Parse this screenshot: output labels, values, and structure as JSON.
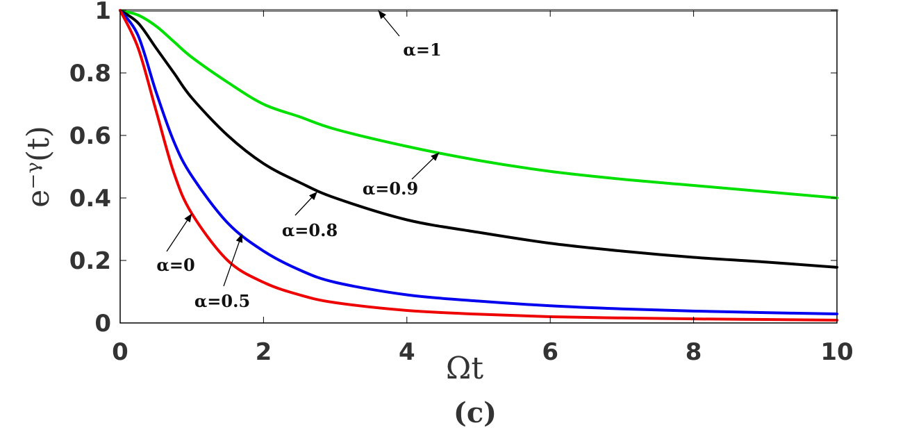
{
  "chart_data": {
    "type": "line",
    "xlabel": "Ωt",
    "ylabel": "e⁻ᵞ(t)",
    "panel_label": "(c)",
    "xlim": [
      0,
      10
    ],
    "ylim": [
      0,
      1
    ],
    "xticks": [
      "0",
      "2",
      "4",
      "6",
      "8",
      "10"
    ],
    "yticks": [
      "0",
      "0.2",
      "0.4",
      "0.6",
      "0.8",
      "1"
    ],
    "grid": false,
    "x": [
      0,
      0.25,
      0.5,
      0.75,
      1,
      1.5,
      2,
      2.5,
      3,
      4,
      5,
      6,
      7,
      8,
      9,
      10
    ],
    "series": [
      {
        "name": "α=1",
        "color": "#808080",
        "values": [
          1,
          1,
          1,
          1,
          1,
          1,
          1,
          1,
          1,
          1,
          1,
          1,
          1,
          1,
          1,
          1
        ]
      },
      {
        "name": "α=0.9",
        "color": "#00e000",
        "values": [
          1,
          0.985,
          0.95,
          0.9,
          0.85,
          0.77,
          0.7,
          0.66,
          0.62,
          0.565,
          0.52,
          0.485,
          0.46,
          0.44,
          0.42,
          0.4
        ]
      },
      {
        "name": "α=0.8",
        "color": "#000000",
        "values": [
          1,
          0.96,
          0.88,
          0.8,
          0.72,
          0.6,
          0.51,
          0.45,
          0.4,
          0.33,
          0.29,
          0.255,
          0.23,
          0.21,
          0.195,
          0.178
        ]
      },
      {
        "name": "α=0.5",
        "color": "#0000ee",
        "values": [
          1,
          0.92,
          0.74,
          0.58,
          0.47,
          0.32,
          0.23,
          0.17,
          0.13,
          0.09,
          0.07,
          0.055,
          0.045,
          0.038,
          0.033,
          0.029
        ]
      },
      {
        "name": "α=0",
        "color": "#ee0000",
        "values": [
          1,
          0.88,
          0.68,
          0.48,
          0.35,
          0.2,
          0.13,
          0.09,
          0.065,
          0.04,
          0.028,
          0.02,
          0.016,
          0.013,
          0.011,
          0.009
        ]
      }
    ],
    "annotations": [
      {
        "text": "α=1",
        "target_x": 3.6,
        "target_y": 1.0
      },
      {
        "text": "α=0.9",
        "target_x": 4.45,
        "target_y": 0.545
      },
      {
        "text": "α=0.8",
        "target_x": 2.75,
        "target_y": 0.42
      },
      {
        "text": "α=0",
        "target_x": 1.0,
        "target_y": 0.35
      },
      {
        "text": "α=0.5",
        "target_x": 1.7,
        "target_y": 0.285
      }
    ]
  }
}
